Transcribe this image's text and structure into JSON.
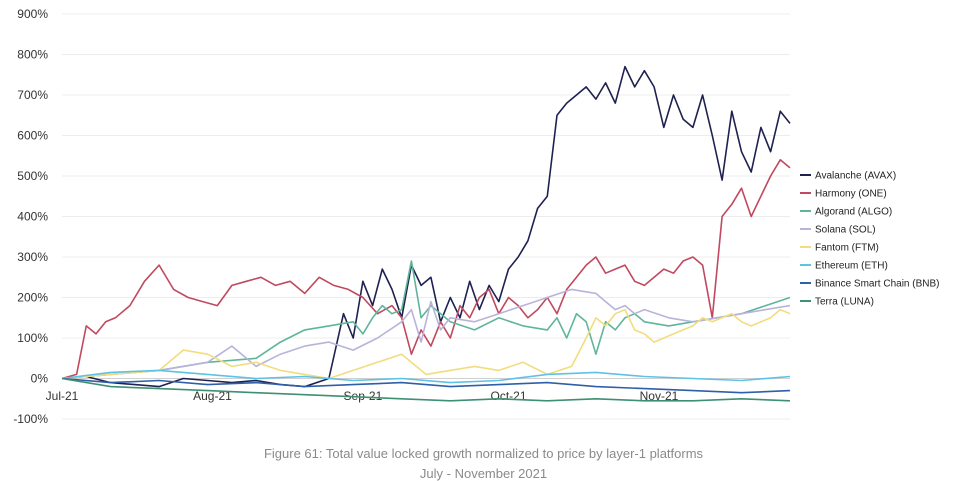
{
  "chart_data": {
    "type": "line",
    "ylim": [
      -100,
      900
    ],
    "yticks": [
      -100,
      0,
      100,
      200,
      300,
      400,
      500,
      600,
      700,
      800,
      900
    ],
    "ytick_labels": [
      "-100%",
      "0%",
      "100%",
      "200%",
      "300%",
      "400%",
      "500%",
      "600%",
      "700%",
      "800%",
      "900%"
    ],
    "xlim": [
      0,
      150
    ],
    "xticks": [
      0,
      31,
      62,
      92,
      123
    ],
    "xtick_labels": [
      "Jul-21",
      "Aug-21",
      "Sep-21",
      "Oct-21",
      "Nov-21"
    ],
    "legend_position": "right",
    "grid": true,
    "series": [
      {
        "name": "Avalanche (AVAX)",
        "color": "#1f2150",
        "x": [
          0,
          5,
          10,
          15,
          20,
          25,
          30,
          35,
          40,
          45,
          50,
          55,
          58,
          60,
          62,
          64,
          66,
          68,
          70,
          72,
          74,
          76,
          78,
          80,
          82,
          84,
          86,
          88,
          90,
          92,
          94,
          96,
          98,
          100,
          102,
          104,
          106,
          108,
          110,
          112,
          114,
          116,
          118,
          120,
          122,
          124,
          126,
          128,
          130,
          132,
          134,
          136,
          138,
          140,
          142,
          144,
          146,
          148,
          150
        ],
        "y": [
          0,
          5,
          -10,
          -15,
          -20,
          0,
          -5,
          -10,
          -5,
          -15,
          -20,
          0,
          160,
          100,
          240,
          180,
          270,
          220,
          150,
          280,
          230,
          250,
          140,
          200,
          150,
          240,
          170,
          230,
          190,
          270,
          300,
          340,
          420,
          450,
          650,
          680,
          700,
          720,
          690,
          730,
          680,
          770,
          720,
          760,
          720,
          620,
          700,
          640,
          620,
          700,
          600,
          490,
          660,
          560,
          510,
          620,
          560,
          660,
          630
        ]
      },
      {
        "name": "Harmony (ONE)",
        "color": "#c0495f",
        "x": [
          0,
          3,
          5,
          7,
          9,
          11,
          14,
          17,
          20,
          23,
          26,
          29,
          32,
          35,
          38,
          41,
          44,
          47,
          50,
          53,
          56,
          59,
          62,
          65,
          68,
          70,
          72,
          74,
          76,
          78,
          80,
          82,
          84,
          86,
          88,
          90,
          92,
          94,
          96,
          98,
          100,
          102,
          104,
          106,
          108,
          110,
          112,
          114,
          116,
          118,
          120,
          122,
          124,
          126,
          128,
          130,
          132,
          134,
          136,
          138,
          140,
          142,
          144,
          146,
          148,
          150
        ],
        "y": [
          0,
          10,
          130,
          110,
          140,
          150,
          180,
          240,
          280,
          220,
          200,
          190,
          180,
          230,
          240,
          250,
          230,
          240,
          210,
          250,
          230,
          220,
          200,
          160,
          180,
          150,
          60,
          120,
          80,
          140,
          100,
          180,
          150,
          200,
          220,
          160,
          200,
          180,
          150,
          170,
          200,
          160,
          220,
          250,
          280,
          300,
          260,
          270,
          280,
          240,
          230,
          250,
          270,
          260,
          290,
          300,
          280,
          150,
          400,
          430,
          470,
          400,
          450,
          500,
          540,
          520
        ]
      },
      {
        "name": "Algorand (ALGO)",
        "color": "#5fb59a",
        "x": [
          0,
          10,
          20,
          30,
          40,
          45,
          50,
          55,
          60,
          62,
          64,
          66,
          68,
          70,
          72,
          74,
          76,
          78,
          80,
          85,
          90,
          95,
          100,
          102,
          104,
          106,
          108,
          110,
          112,
          114,
          116,
          118,
          120,
          125,
          130,
          135,
          140,
          145,
          150
        ],
        "y": [
          0,
          10,
          20,
          40,
          50,
          90,
          120,
          130,
          140,
          110,
          150,
          180,
          160,
          170,
          290,
          150,
          180,
          160,
          140,
          120,
          150,
          130,
          120,
          150,
          100,
          160,
          140,
          60,
          140,
          120,
          150,
          160,
          140,
          130,
          140,
          150,
          160,
          180,
          200
        ]
      },
      {
        "name": "Solana (SOL)",
        "color": "#b8b4d9",
        "x": [
          0,
          10,
          20,
          30,
          35,
          40,
          45,
          50,
          55,
          60,
          65,
          70,
          72,
          74,
          76,
          78,
          80,
          85,
          90,
          95,
          100,
          105,
          110,
          112,
          114,
          116,
          118,
          120,
          125,
          130,
          135,
          140,
          145,
          150
        ],
        "y": [
          0,
          10,
          20,
          40,
          80,
          30,
          60,
          80,
          90,
          70,
          100,
          140,
          170,
          90,
          190,
          120,
          150,
          140,
          160,
          180,
          200,
          220,
          210,
          190,
          170,
          180,
          160,
          170,
          150,
          140,
          150,
          160,
          170,
          180
        ]
      },
      {
        "name": "Fantom (FTM)",
        "color": "#f2dd7e",
        "x": [
          0,
          10,
          20,
          25,
          30,
          35,
          40,
          45,
          50,
          55,
          60,
          65,
          70,
          75,
          80,
          85,
          90,
          95,
          100,
          105,
          108,
          110,
          112,
          114,
          116,
          118,
          120,
          122,
          124,
          126,
          128,
          130,
          132,
          134,
          136,
          138,
          140,
          142,
          144,
          146,
          148,
          150
        ],
        "y": [
          0,
          10,
          20,
          70,
          60,
          30,
          40,
          20,
          10,
          0,
          20,
          40,
          60,
          10,
          20,
          30,
          20,
          40,
          10,
          30,
          100,
          150,
          130,
          160,
          170,
          120,
          110,
          90,
          100,
          110,
          120,
          130,
          150,
          140,
          150,
          160,
          140,
          130,
          140,
          150,
          170,
          160
        ]
      },
      {
        "name": "Ethereum (ETH)",
        "color": "#5ec2e6",
        "x": [
          0,
          10,
          20,
          30,
          40,
          50,
          60,
          70,
          80,
          90,
          100,
          110,
          120,
          130,
          140,
          150
        ],
        "y": [
          0,
          15,
          20,
          10,
          0,
          5,
          -5,
          0,
          -10,
          -5,
          10,
          15,
          5,
          0,
          -5,
          5
        ]
      },
      {
        "name": "Binance Smart Chain (BNB)",
        "color": "#2f5fa8",
        "x": [
          0,
          10,
          20,
          30,
          40,
          50,
          60,
          70,
          80,
          90,
          100,
          110,
          120,
          130,
          140,
          150
        ],
        "y": [
          0,
          -10,
          -5,
          -15,
          -10,
          -20,
          -15,
          -10,
          -20,
          -15,
          -10,
          -20,
          -25,
          -30,
          -35,
          -30
        ]
      },
      {
        "name": "Terra (LUNA)",
        "color": "#3d9170",
        "x": [
          0,
          10,
          20,
          30,
          40,
          50,
          60,
          70,
          80,
          90,
          100,
          110,
          120,
          130,
          140,
          150
        ],
        "y": [
          0,
          -20,
          -25,
          -30,
          -35,
          -40,
          -45,
          -50,
          -55,
          -50,
          -55,
          -50,
          -55,
          -55,
          -50,
          -55
        ]
      }
    ]
  },
  "caption": {
    "line1": "Figure 61: Total value locked growth normalized to price by layer-1 platforms",
    "line2": "July - November 2021"
  }
}
